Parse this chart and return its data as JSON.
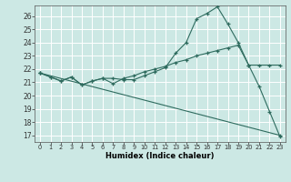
{
  "xlabel": "Humidex (Indice chaleur)",
  "bg_color": "#cce8e4",
  "grid_color": "#ffffff",
  "line_color": "#2e6b5e",
  "xlim": [
    -0.5,
    23.5
  ],
  "ylim": [
    16.5,
    26.8
  ],
  "xticks": [
    0,
    1,
    2,
    3,
    4,
    5,
    6,
    7,
    8,
    9,
    10,
    11,
    12,
    13,
    14,
    15,
    16,
    17,
    18,
    19,
    20,
    21,
    22,
    23
  ],
  "yticks": [
    17,
    18,
    19,
    20,
    21,
    22,
    23,
    24,
    25,
    26
  ],
  "line1_x": [
    0,
    1,
    2,
    3,
    4,
    5,
    6,
    7,
    8,
    9,
    10,
    11,
    12,
    13,
    14,
    15,
    16,
    17,
    18,
    19,
    20,
    21,
    22,
    23
  ],
  "line1_y": [
    21.7,
    21.4,
    21.1,
    21.4,
    20.8,
    21.1,
    21.3,
    21.3,
    21.2,
    21.2,
    21.5,
    21.8,
    22.1,
    23.2,
    24.0,
    25.8,
    26.2,
    26.7,
    25.4,
    24.0,
    22.3,
    20.7,
    18.8,
    16.9
  ],
  "line2_x": [
    0,
    1,
    2,
    3,
    4,
    5,
    6,
    7,
    8,
    9,
    10,
    11,
    12,
    13,
    14,
    15,
    16,
    17,
    18,
    19,
    20,
    21,
    22,
    23
  ],
  "line2_y": [
    21.7,
    21.4,
    21.1,
    21.4,
    20.8,
    21.1,
    21.3,
    20.9,
    21.3,
    21.5,
    21.8,
    22.0,
    22.2,
    22.5,
    22.7,
    23.0,
    23.2,
    23.4,
    23.6,
    23.8,
    22.3,
    22.3,
    22.3,
    22.3
  ],
  "line3_x": [
    0,
    23
  ],
  "line3_y": [
    21.7,
    17.0
  ],
  "figsize": [
    3.2,
    2.0
  ],
  "dpi": 100
}
